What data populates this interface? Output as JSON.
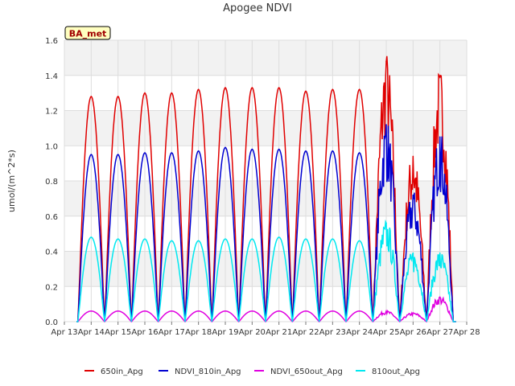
{
  "chart_data": {
    "type": "line",
    "title": "Apogee NDVI",
    "ylabel": "umol/(m^2*s)",
    "xlabel": "",
    "annotation": "BA_met",
    "x_ticks": [
      "Apr 13",
      "Apr 14",
      "Apr 15",
      "Apr 16",
      "Apr 17",
      "Apr 18",
      "Apr 19",
      "Apr 20",
      "Apr 21",
      "Apr 22",
      "Apr 23",
      "Apr 24",
      "Apr 25",
      "Apr 26",
      "Apr 27",
      "Apr 28"
    ],
    "xlim": [
      "Apr 13",
      "Apr 28"
    ],
    "y_ticks": [
      "0.0",
      "0.2",
      "0.4",
      "0.6",
      "0.8",
      "1.0",
      "1.2",
      "1.4",
      "1.6"
    ],
    "ylim": [
      0,
      1.6
    ],
    "grid": true,
    "background": "alternating gray bands",
    "legend_position": "bottom",
    "daily_peak_dates": [
      "Apr 13",
      "Apr 14",
      "Apr 15",
      "Apr 16",
      "Apr 17",
      "Apr 18",
      "Apr 19",
      "Apr 20",
      "Apr 21",
      "Apr 22",
      "Apr 23",
      "Apr 24",
      "Apr 25",
      "Apr 26"
    ],
    "series": [
      {
        "name": "650in_Apg",
        "color": "#e00000",
        "daily_peaks": [
          1.28,
          1.28,
          1.3,
          1.3,
          1.32,
          1.33,
          1.33,
          1.33,
          1.31,
          1.32,
          1.32,
          1.48,
          0.94,
          1.39
        ]
      },
      {
        "name": "NDVI_810in_Apg",
        "color": "#0000d0",
        "daily_peaks": [
          0.95,
          0.95,
          0.96,
          0.96,
          0.97,
          0.99,
          0.98,
          0.98,
          0.97,
          0.97,
          0.96,
          1.12,
          0.72,
          1.05
        ]
      },
      {
        "name": "NDVI_650out_Apg",
        "color": "#e000e0",
        "daily_peaks": [
          0.06,
          0.06,
          0.06,
          0.06,
          0.06,
          0.06,
          0.06,
          0.06,
          0.06,
          0.06,
          0.06,
          0.06,
          0.05,
          0.14
        ]
      },
      {
        "name": "810out_Apg",
        "color": "#00e8f0",
        "daily_peaks": [
          0.48,
          0.47,
          0.47,
          0.46,
          0.46,
          0.47,
          0.47,
          0.48,
          0.47,
          0.47,
          0.46,
          0.56,
          0.39,
          0.39
        ]
      }
    ]
  }
}
